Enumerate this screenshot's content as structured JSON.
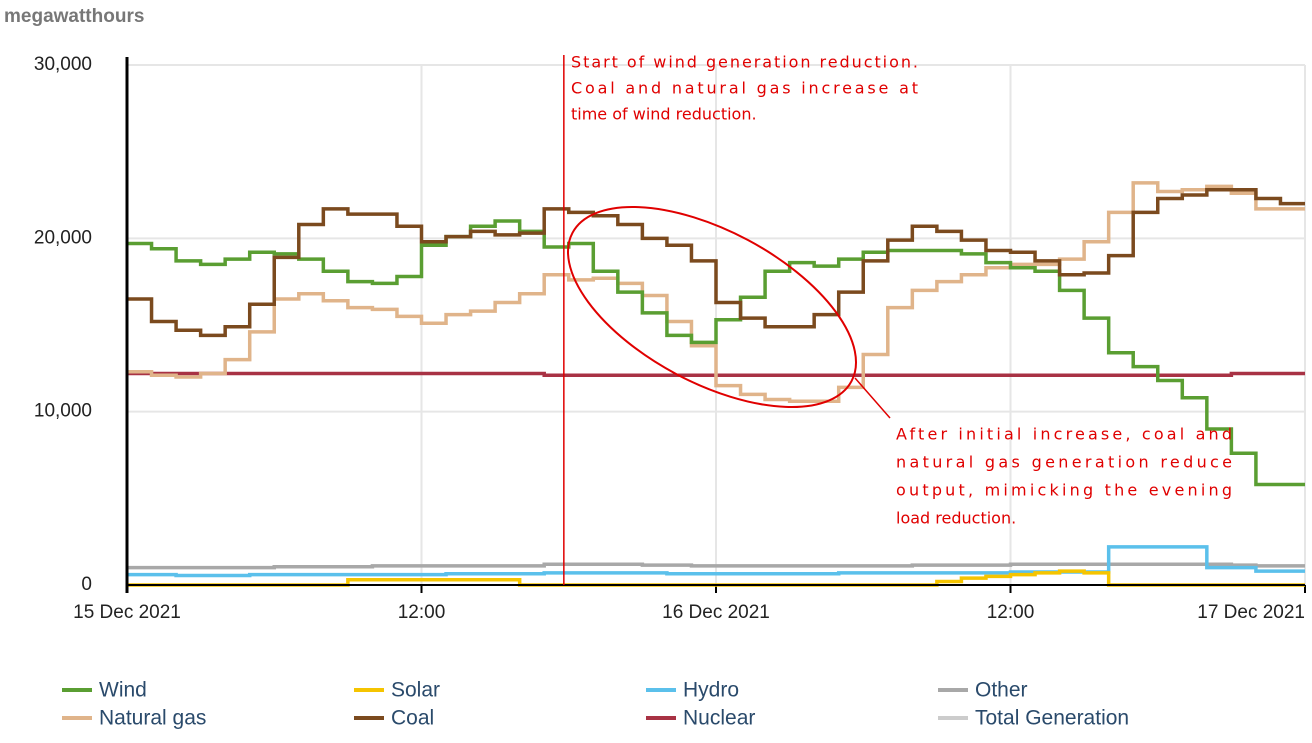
{
  "chart_data": {
    "type": "step-line",
    "y_label": "megawatthours",
    "x": [
      0,
      1,
      2,
      3,
      4,
      5,
      6,
      7,
      8,
      9,
      10,
      11,
      12,
      13,
      14,
      15,
      16,
      17,
      18,
      19,
      20,
      21,
      22,
      23,
      24,
      25,
      26,
      27,
      28,
      29,
      30,
      31,
      32,
      33,
      34,
      35,
      36,
      37,
      38,
      39,
      40,
      41,
      42,
      43,
      44,
      45,
      46,
      47
    ],
    "xlim": [
      0,
      48
    ],
    "xticks": [
      {
        "value": 0,
        "label": "15 Dec 2021"
      },
      {
        "value": 12,
        "label": "12:00"
      },
      {
        "value": 24,
        "label": "16 Dec 2021"
      },
      {
        "value": 36,
        "label": "12:00"
      },
      {
        "value": 48,
        "label": "17 Dec 2021"
      }
    ],
    "ylim": [
      0,
      30000
    ],
    "yticks": [
      0,
      {
        "value": 10000,
        "label": "10,000"
      },
      {
        "value": 20000,
        "label": "20,000"
      },
      {
        "value": 30000,
        "label": "30,000"
      }
    ],
    "grid": true,
    "series": [
      {
        "name": "Wind",
        "color": "#5a9e32",
        "values": [
          19700,
          19400,
          18700,
          18500,
          18800,
          19200,
          19100,
          18800,
          18100,
          17500,
          17400,
          17800,
          19600,
          20100,
          20700,
          21000,
          20400,
          19500,
          19700,
          18100,
          16900,
          15700,
          14400,
          14000,
          15300,
          16600,
          18100,
          18600,
          18400,
          18800,
          19200,
          19300,
          19300,
          19300,
          19100,
          18600,
          18300,
          18100,
          17000,
          15400,
          13400,
          12600,
          11800,
          10800,
          9000,
          7600,
          5800,
          5800
        ]
      },
      {
        "name": "Natural gas",
        "color": "#e0b48a",
        "values": [
          12300,
          12100,
          12000,
          12200,
          13000,
          14600,
          16500,
          16800,
          16400,
          16000,
          15900,
          15500,
          15100,
          15600,
          15800,
          16300,
          16800,
          17900,
          17600,
          17700,
          17400,
          16700,
          15200,
          13800,
          11500,
          11000,
          10700,
          10600,
          10600,
          11400,
          13300,
          16000,
          17000,
          17500,
          17900,
          18300,
          18500,
          18500,
          18800,
          19800,
          21500,
          23200,
          22700,
          22800,
          23000,
          22600,
          21700,
          21700
        ]
      },
      {
        "name": "Solar",
        "color": "#f5c400",
        "values": [
          0,
          0,
          0,
          0,
          0,
          0,
          0,
          0,
          0,
          300,
          300,
          300,
          300,
          300,
          300,
          300,
          0,
          0,
          0,
          0,
          0,
          0,
          0,
          0,
          0,
          0,
          0,
          0,
          0,
          0,
          0,
          0,
          0,
          200,
          400,
          500,
          600,
          700,
          800,
          700,
          0,
          0,
          0,
          0,
          0,
          0,
          0,
          0
        ]
      },
      {
        "name": "Coal",
        "color": "#7b4a1e",
        "values": [
          16500,
          15200,
          14700,
          14400,
          14900,
          16200,
          18900,
          20800,
          21700,
          21400,
          21400,
          20700,
          19800,
          20100,
          20400,
          20200,
          20300,
          21700,
          21500,
          21300,
          20800,
          20000,
          19600,
          18700,
          16300,
          15400,
          14900,
          14900,
          15600,
          16900,
          18700,
          19900,
          20700,
          20400,
          19900,
          19300,
          19200,
          18700,
          17900,
          18000,
          19000,
          21500,
          22300,
          22500,
          22800,
          22800,
          22300,
          22000
        ]
      },
      {
        "name": "Hydro",
        "color": "#5bc0eb",
        "values": [
          600,
          600,
          550,
          550,
          550,
          600,
          600,
          600,
          600,
          600,
          600,
          600,
          600,
          650,
          650,
          650,
          650,
          700,
          700,
          700,
          700,
          700,
          650,
          650,
          650,
          650,
          650,
          650,
          650,
          700,
          700,
          700,
          700,
          700,
          700,
          700,
          750,
          750,
          750,
          750,
          2200,
          2200,
          2200,
          2200,
          1000,
          1000,
          800,
          800
        ]
      },
      {
        "name": "Nuclear",
        "color": "#a83244",
        "values": [
          12200,
          12200,
          12200,
          12200,
          12200,
          12200,
          12200,
          12200,
          12200,
          12200,
          12200,
          12200,
          12200,
          12200,
          12200,
          12200,
          12200,
          12100,
          12100,
          12100,
          12100,
          12100,
          12100,
          12100,
          12100,
          12100,
          12100,
          12100,
          12100,
          12100,
          12100,
          12100,
          12100,
          12100,
          12100,
          12100,
          12100,
          12100,
          12100,
          12100,
          12100,
          12100,
          12100,
          12100,
          12100,
          12200,
          12200,
          12200
        ]
      },
      {
        "name": "Other",
        "color": "#a8a8a8",
        "values": [
          1000,
          1000,
          1000,
          1000,
          1000,
          1000,
          1050,
          1050,
          1050,
          1050,
          1100,
          1100,
          1100,
          1100,
          1100,
          1100,
          1100,
          1200,
          1200,
          1200,
          1200,
          1150,
          1150,
          1100,
          1100,
          1100,
          1100,
          1100,
          1100,
          1100,
          1100,
          1100,
          1150,
          1150,
          1150,
          1150,
          1200,
          1200,
          1200,
          1200,
          1200,
          1200,
          1200,
          1200,
          1200,
          1150,
          1100,
          1100
        ]
      },
      {
        "name": "Total Generation",
        "color": "#cccccc",
        "visible": false
      }
    ],
    "annotations": [
      {
        "x": 17.8,
        "lines": [
          "Start of wind generation reduction.",
          "Coal and natural gas increase at",
          "time of wind reduction."
        ]
      },
      {
        "lines": [
          "After initial increase, coal and",
          "natural gas generation reduce",
          "output, mimicking the evening",
          "load reduction."
        ]
      }
    ]
  }
}
